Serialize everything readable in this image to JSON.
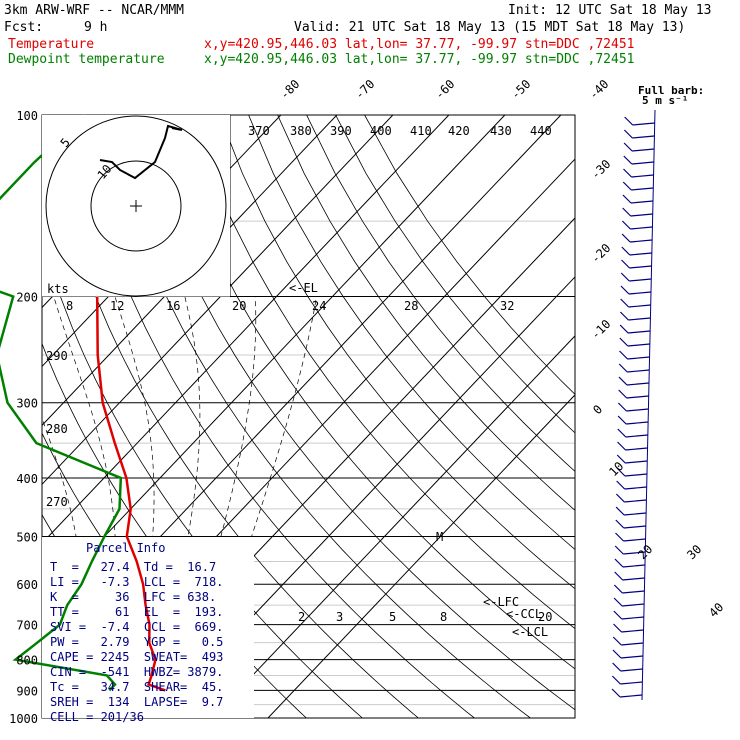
{
  "header": {
    "model": "3km ARW-WRF -- NCAR/MMM",
    "init": "Init: 12 UTC Sat 18 May 13",
    "fcst_label": "Fcst:",
    "fcst_value": "9 h",
    "valid": "Valid: 21 UTC Sat 18 May 13 (15 MDT Sat 18 May 13)",
    "temp_label": "Temperature",
    "dew_label": "Dewpoint temperature",
    "loc_text": "x,y=420.95,446.03   lat,lon= 37.77, -99.97   stn=DDC ,72451"
  },
  "colors": {
    "temperature": "#e00000",
    "dewpoint": "#008000",
    "annot": "#000080",
    "frame": "#000000"
  },
  "wind_legend": {
    "line1": "Full barb:",
    "line2": "5 m s⁻¹"
  },
  "pressure_labels": [
    "100",
    "200",
    "300",
    "400",
    "500",
    "600",
    "700",
    "800",
    "900",
    "1000"
  ],
  "skew_temp_labels": [
    "-80",
    "-70",
    "-60",
    "-50",
    "-40",
    "-30",
    "-20",
    "-10",
    "0",
    "10",
    "20",
    "30",
    "40"
  ],
  "theta_labels": [
    "370",
    "380",
    "390",
    "400",
    "410",
    "420",
    "430",
    "440"
  ],
  "hodo": {
    "kts": "kts",
    "ring_labels": [
      "8",
      "12",
      "16",
      "20",
      "24",
      "28",
      "32"
    ],
    "circle_labels": [
      "5",
      "10"
    ]
  },
  "mix_labels": [
    "2",
    "3",
    "5",
    "8",
    "20"
  ],
  "lower_theta_labels": [
    "290",
    "280",
    "270"
  ],
  "annotations": {
    "el": "<-EL",
    "lfc": "<-LFC",
    "ccl": "<-CCL",
    "lcl": "<-LCL",
    "m": "M"
  },
  "parcel_info": {
    "title": "Parcel Info",
    "lines": [
      "T  =   27.4  Td =  16.7",
      "LI =   -7.3  LCL =  718.",
      "K  =     36  LFC = 638.",
      "TT =     61  EL  =  193.",
      "SVI =  -7.4  CCL =  669.",
      "PW =   2.79  YGP =   0.5",
      "CAPE = 2245  SWEAT=  493",
      "CIN =  -541  HWBZ= 3879.",
      "Tc =   34.7  SHEAR=  45.",
      "SREH =  134  LAPSE=  9.7",
      "CELL = 201/36"
    ]
  },
  "chart_data": {
    "type": "line",
    "title": "",
    "xlabel": "",
    "ylabel": "",
    "y_scale": "log-pressure",
    "ylim": [
      1000,
      100
    ],
    "series": [
      {
        "name": "Temperature",
        "points": [
          [
            100,
            -60
          ],
          [
            120,
            -62
          ],
          [
            150,
            -58
          ],
          [
            170,
            -54
          ],
          [
            200,
            -52
          ],
          [
            250,
            -42
          ],
          [
            300,
            -33
          ],
          [
            350,
            -24
          ],
          [
            400,
            -16
          ],
          [
            450,
            -10
          ],
          [
            500,
            -6
          ],
          [
            550,
            0
          ],
          [
            600,
            5
          ],
          [
            650,
            9
          ],
          [
            700,
            13
          ],
          [
            750,
            16
          ],
          [
            800,
            20
          ],
          [
            850,
            22
          ],
          [
            880,
            23
          ],
          [
            900,
            27
          ]
        ]
      },
      {
        "name": "Dewpoint temperature",
        "points": [
          [
            100,
            -85
          ],
          [
            120,
            -86
          ],
          [
            150,
            -86
          ],
          [
            170,
            -79
          ],
          [
            190,
            -76
          ],
          [
            200,
            -67
          ],
          [
            250,
            -60
          ],
          [
            300,
            -50
          ],
          [
            350,
            -38
          ],
          [
            400,
            -17
          ],
          [
            450,
            -12
          ],
          [
            500,
            -10
          ],
          [
            550,
            -8
          ],
          [
            600,
            -6
          ],
          [
            650,
            -5
          ],
          [
            700,
            -3
          ],
          [
            750,
            -4
          ],
          [
            800,
            -5
          ],
          [
            850,
            14
          ],
          [
            880,
            17
          ],
          [
            900,
            17
          ]
        ]
      }
    ]
  }
}
